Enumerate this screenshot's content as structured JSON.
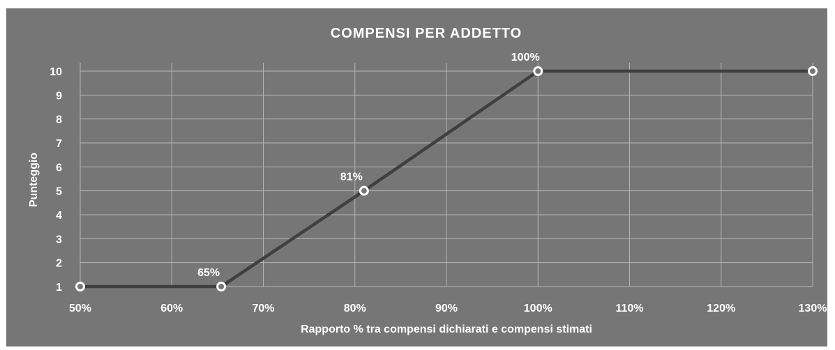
{
  "chart_data": {
    "type": "line",
    "title": "COMPENSI PER ADDETTO",
    "xlabel": "Rapporto % tra compensi dichiarati e compensi stimati",
    "ylabel": "Punteggio",
    "xlim": [
      50,
      130
    ],
    "ylim": [
      1,
      10
    ],
    "x_ticks": [
      "50%",
      "60%",
      "70%",
      "80%",
      "90%",
      "100%",
      "110%",
      "120%",
      "130%"
    ],
    "x_tick_values": [
      50,
      60,
      70,
      80,
      90,
      100,
      110,
      120,
      130
    ],
    "y_ticks": [
      "1",
      "2",
      "3",
      "4",
      "5",
      "6",
      "7",
      "8",
      "9",
      "10"
    ],
    "y_tick_values": [
      1,
      2,
      3,
      4,
      5,
      6,
      7,
      8,
      9,
      10
    ],
    "grid": true,
    "series": [
      {
        "points": [
          {
            "x": 50,
            "y": 1,
            "label": ""
          },
          {
            "x": 65.4,
            "y": 1,
            "label": "65%"
          },
          {
            "x": 81,
            "y": 5,
            "label": "81%"
          },
          {
            "x": 100,
            "y": 10,
            "label": "100%"
          },
          {
            "x": 130,
            "y": 10,
            "label": ""
          }
        ]
      }
    ],
    "colors": {
      "background": "#767676",
      "line": "#3f3f3f",
      "grid": "#b5b5b5",
      "marker_fill": "#767676",
      "marker_stroke": "#ffffff",
      "text": "#ffffff"
    }
  }
}
